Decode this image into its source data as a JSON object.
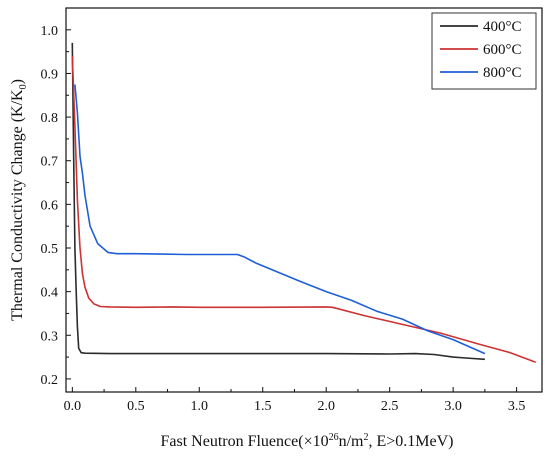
{
  "chart_data": {
    "type": "line",
    "xlabel_main": "Fast Neutron Fluence(×10",
    "xlabel_sup1": "26",
    "xlabel_mid": "n/m",
    "xlabel_sup2": "2",
    "xlabel_tail": ", E>0.1MeV)",
    "ylabel_main": "Thermal Conductivity Change (K/K",
    "ylabel_sub": "0",
    "ylabel_tail": ")",
    "xlim": [
      -0.05,
      3.7
    ],
    "ylim": [
      0.17,
      1.05
    ],
    "xticks": [
      0.0,
      0.5,
      1.0,
      1.5,
      2.0,
      2.5,
      3.0,
      3.5
    ],
    "yticks": [
      0.2,
      0.3,
      0.4,
      0.5,
      0.6,
      0.7,
      0.8,
      0.9,
      1.0
    ],
    "xtick_labels": [
      "0.0",
      "0.5",
      "1.0",
      "1.5",
      "2.0",
      "2.5",
      "3.0",
      "3.5"
    ],
    "ytick_labels": [
      "0.2",
      "0.3",
      "0.4",
      "0.5",
      "0.6",
      "0.7",
      "0.8",
      "0.9",
      "1.0"
    ],
    "legend_position": "top-right",
    "grid": false,
    "series": [
      {
        "name": "400°C",
        "color": "#2b2b2b",
        "x": [
          0.0,
          0.01,
          0.02,
          0.03,
          0.04,
          0.05,
          0.07,
          0.1,
          0.3,
          0.6,
          1.0,
          1.5,
          2.0,
          2.5,
          2.7,
          2.85,
          3.0,
          3.1,
          3.25
        ],
        "y": [
          0.97,
          0.72,
          0.5,
          0.4,
          0.32,
          0.27,
          0.26,
          0.259,
          0.258,
          0.258,
          0.258,
          0.258,
          0.258,
          0.257,
          0.258,
          0.256,
          0.25,
          0.248,
          0.245
        ]
      },
      {
        "name": "600°C",
        "color": "#cc3333",
        "x": [
          0.0,
          0.02,
          0.04,
          0.06,
          0.08,
          0.1,
          0.13,
          0.17,
          0.22,
          0.3,
          0.5,
          0.8,
          1.0,
          1.5,
          2.0,
          2.05,
          2.3,
          2.6,
          2.9,
          3.2,
          3.45,
          3.65
        ],
        "y": [
          0.94,
          0.78,
          0.61,
          0.5,
          0.44,
          0.41,
          0.385,
          0.372,
          0.366,
          0.365,
          0.364,
          0.365,
          0.364,
          0.364,
          0.365,
          0.364,
          0.345,
          0.325,
          0.305,
          0.28,
          0.26,
          0.238
        ]
      },
      {
        "name": "800°C",
        "color": "#1f5fd6",
        "x": [
          0.02,
          0.04,
          0.06,
          0.08,
          0.1,
          0.14,
          0.2,
          0.28,
          0.35,
          0.5,
          0.7,
          0.9,
          1.1,
          1.3,
          1.35,
          1.45,
          1.6,
          1.8,
          2.0,
          2.2,
          2.4,
          2.6,
          2.8,
          3.0,
          3.25
        ],
        "y": [
          0.875,
          0.81,
          0.71,
          0.67,
          0.62,
          0.55,
          0.51,
          0.49,
          0.487,
          0.487,
          0.486,
          0.485,
          0.485,
          0.485,
          0.48,
          0.465,
          0.447,
          0.423,
          0.4,
          0.38,
          0.355,
          0.337,
          0.31,
          0.29,
          0.258
        ]
      }
    ]
  }
}
